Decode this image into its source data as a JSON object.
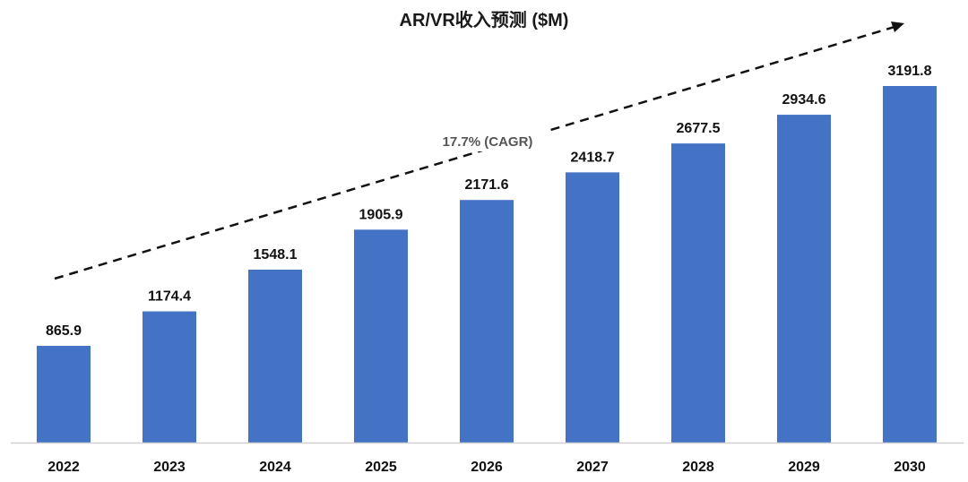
{
  "chart_data": {
    "type": "bar",
    "title": "AR/VR收入预测 ($M)",
    "xlabel": "",
    "ylabel": "",
    "categories": [
      "2022",
      "2023",
      "2024",
      "2025",
      "2026",
      "2027",
      "2028",
      "2029",
      "2030"
    ],
    "values": [
      865.9,
      1174.4,
      1548.1,
      1905.9,
      2171.6,
      2418.7,
      2677.5,
      2934.6,
      3191.8
    ],
    "value_labels": [
      "865.9",
      "1174.4",
      "1548.1",
      "1905.9",
      "2171.6",
      "2418.7",
      "2677.5",
      "2934.6",
      "3191.8"
    ],
    "bar_color": "#4472C4",
    "grid": false,
    "legend": null,
    "annotations": [
      {
        "text": "17.7% (CAGR)",
        "type": "dashed-arrow-trend"
      }
    ]
  }
}
